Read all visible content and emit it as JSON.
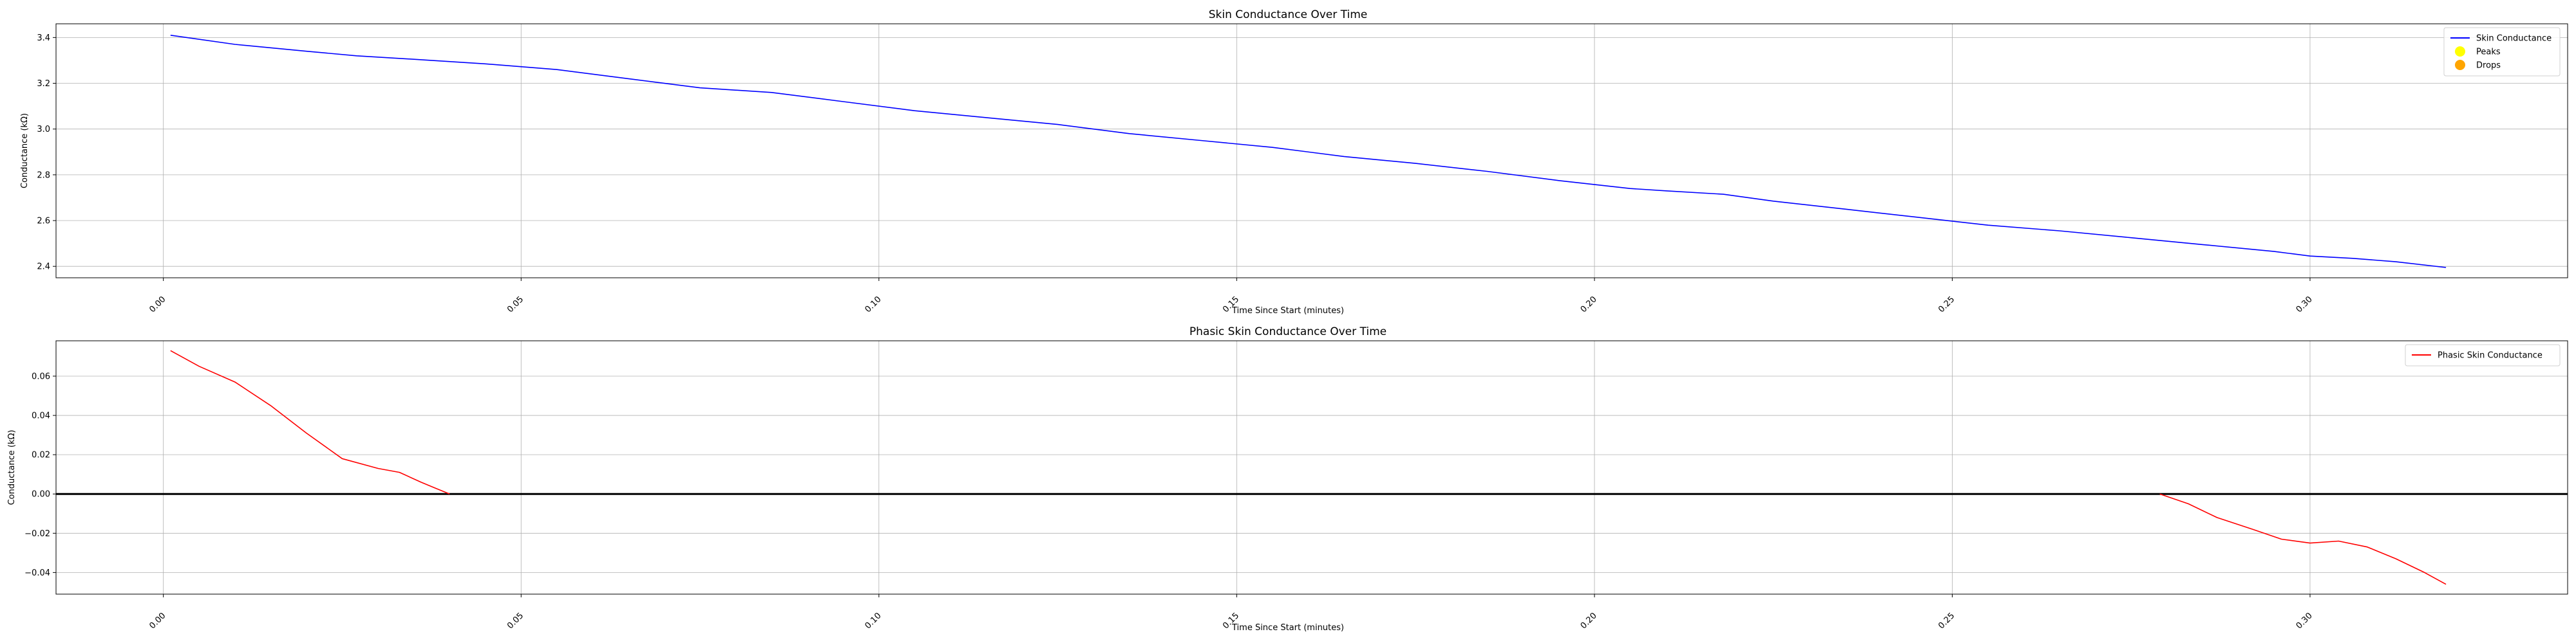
{
  "chart_data": [
    {
      "type": "line",
      "title": "Skin Conductance Over Time",
      "xlabel": "Time Since Start (minutes)",
      "ylabel": "Conductance (kΩ)",
      "xlim": [
        -0.015,
        0.336
      ],
      "ylim": [
        2.35,
        3.46
      ],
      "xticks": [
        0.0,
        0.05,
        0.1,
        0.15,
        0.2,
        0.25,
        0.3
      ],
      "xtick_labels": [
        "0.00",
        "0.05",
        "0.10",
        "0.15",
        "0.20",
        "0.25",
        "0.30"
      ],
      "yticks": [
        2.4,
        2.6,
        2.8,
        3.0,
        3.2,
        3.4
      ],
      "ytick_labels": [
        "2.4",
        "2.6",
        "2.8",
        "3.0",
        "3.2",
        "3.4"
      ],
      "grid": true,
      "legend_position": "top-right",
      "legend": [
        {
          "label": "Skin Conductance",
          "kind": "line",
          "color": "#0000ff"
        },
        {
          "label": "Peaks",
          "kind": "marker",
          "color": "#ffff00"
        },
        {
          "label": "Drops",
          "kind": "marker",
          "color": "#ffa500"
        }
      ],
      "series": [
        {
          "name": "Skin Conductance",
          "color": "#0000ff",
          "x": [
            0.001,
            0.01,
            0.02,
            0.027,
            0.035,
            0.045,
            0.055,
            0.065,
            0.075,
            0.085,
            0.095,
            0.105,
            0.115,
            0.125,
            0.135,
            0.145,
            0.155,
            0.165,
            0.175,
            0.185,
            0.195,
            0.205,
            0.21,
            0.218,
            0.225,
            0.235,
            0.245,
            0.255,
            0.265,
            0.275,
            0.285,
            0.295,
            0.3,
            0.306,
            0.312,
            0.319
          ],
          "y": [
            3.41,
            3.37,
            3.34,
            3.32,
            3.305,
            3.285,
            3.26,
            3.22,
            3.18,
            3.16,
            3.12,
            3.08,
            3.05,
            3.02,
            2.98,
            2.95,
            2.92,
            2.88,
            2.85,
            2.815,
            2.775,
            2.74,
            2.73,
            2.715,
            2.685,
            2.65,
            2.615,
            2.58,
            2.555,
            2.525,
            2.495,
            2.465,
            2.445,
            2.435,
            2.42,
            2.395
          ]
        }
      ]
    },
    {
      "type": "line",
      "title": "Phasic Skin Conductance Over Time",
      "xlabel": "Time Since Start (minutes)",
      "ylabel": "Conductance (kΩ)",
      "xlim": [
        -0.015,
        0.336
      ],
      "ylim": [
        -0.051,
        0.078
      ],
      "xticks": [
        0.0,
        0.05,
        0.1,
        0.15,
        0.2,
        0.25,
        0.3
      ],
      "xtick_labels": [
        "0.00",
        "0.05",
        "0.10",
        "0.15",
        "0.20",
        "0.25",
        "0.30"
      ],
      "yticks": [
        -0.04,
        -0.02,
        0.0,
        0.02,
        0.04,
        0.06
      ],
      "ytick_labels": [
        "−0.04",
        "−0.02",
        "0.00",
        "0.02",
        "0.04",
        "0.06"
      ],
      "grid": true,
      "zero_line": true,
      "legend_position": "top-right",
      "legend": [
        {
          "label": "Phasic Skin Conductance",
          "kind": "line",
          "color": "#ff0000"
        }
      ],
      "series": [
        {
          "name": "Phasic Skin Conductance",
          "color": "#ff0000",
          "segments": [
            {
              "x": [
                0.001,
                0.005,
                0.01,
                0.015,
                0.02,
                0.025,
                0.03,
                0.033,
                0.036,
                0.038,
                0.04
              ],
              "y": [
                0.073,
                0.065,
                0.057,
                0.045,
                0.031,
                0.018,
                0.013,
                0.011,
                0.006,
                0.003,
                0.0
              ]
            },
            {
              "x": [
                0.279,
                0.283,
                0.287,
                0.292,
                0.296,
                0.3,
                0.304,
                0.308,
                0.312,
                0.316,
                0.319
              ],
              "y": [
                0.0,
                -0.005,
                -0.012,
                -0.018,
                -0.023,
                -0.025,
                -0.024,
                -0.027,
                -0.033,
                -0.04,
                -0.046
              ]
            }
          ]
        }
      ]
    }
  ]
}
